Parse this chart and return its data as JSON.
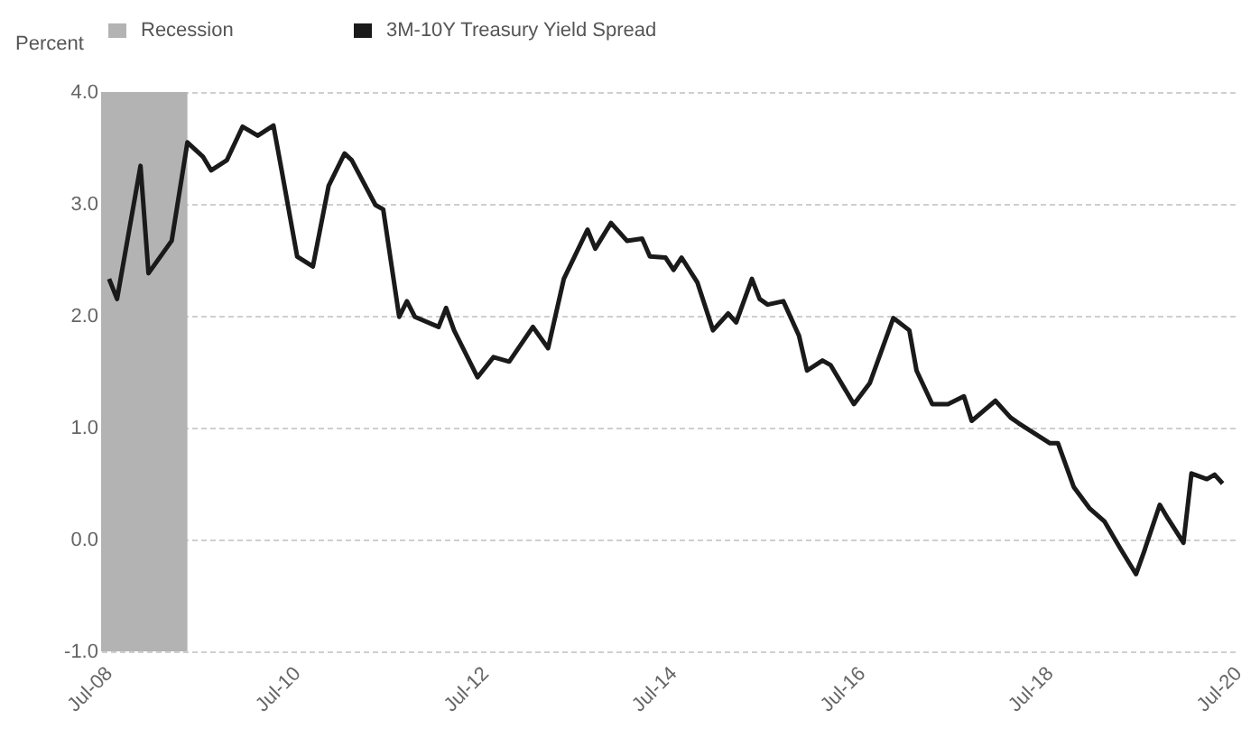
{
  "chart_data": {
    "type": "line",
    "ylabel": "Percent",
    "x": [
      "2008-08",
      "2008-09",
      "2008-12",
      "2009-01",
      "2009-04",
      "2009-06",
      "2009-08",
      "2009-09",
      "2009-11",
      "2010-01",
      "2010-03",
      "2010-05",
      "2010-06",
      "2010-08",
      "2010-10",
      "2010-12",
      "2011-02",
      "2011-03",
      "2011-06",
      "2011-07",
      "2011-09",
      "2011-10",
      "2011-11",
      "2012-02",
      "2012-03",
      "2012-04",
      "2012-07",
      "2012-09",
      "2012-11",
      "2013-02",
      "2013-04",
      "2013-06",
      "2013-09",
      "2013-10",
      "2013-12",
      "2014-02",
      "2014-04",
      "2014-05",
      "2014-07",
      "2014-08",
      "2014-09",
      "2014-11",
      "2015-01",
      "2015-03",
      "2015-04",
      "2015-06",
      "2015-07",
      "2015-08",
      "2015-10",
      "2015-12",
      "2016-01",
      "2016-03",
      "2016-04",
      "2016-07",
      "2016-09",
      "2016-12",
      "2017-02",
      "2017-03",
      "2017-05",
      "2017-07",
      "2017-09",
      "2017-10",
      "2018-01",
      "2018-03",
      "2018-04",
      "2018-08",
      "2018-09",
      "2018-11",
      "2019-01",
      "2019-03",
      "2019-05",
      "2019-07",
      "2019-08",
      "2019-10",
      "2019-11",
      "2020-01",
      "2020-02",
      "2020-04",
      "2020-05",
      "2020-06"
    ],
    "series": [
      {
        "name": "3M-10Y Treasury Yield Spread",
        "color": "#1a1a1a",
        "values": [
          2.33,
          2.15,
          3.34,
          2.38,
          2.67,
          3.55,
          3.42,
          3.3,
          3.39,
          3.69,
          3.61,
          3.7,
          3.31,
          2.53,
          2.44,
          3.16,
          3.45,
          3.39,
          2.99,
          2.95,
          1.99,
          2.13,
          1.99,
          1.9,
          2.07,
          1.87,
          1.45,
          1.63,
          1.59,
          1.9,
          1.71,
          2.33,
          2.77,
          2.6,
          2.83,
          2.67,
          2.69,
          2.53,
          2.52,
          2.41,
          2.52,
          2.3,
          1.87,
          2.02,
          1.94,
          2.33,
          2.15,
          2.1,
          2.13,
          1.82,
          1.51,
          1.6,
          1.56,
          1.21,
          1.4,
          1.98,
          1.87,
          1.51,
          1.21,
          1.21,
          1.28,
          1.06,
          1.24,
          1.09,
          1.04,
          0.86,
          0.86,
          0.47,
          0.28,
          0.16,
          -0.08,
          -0.31,
          -0.11,
          0.31,
          0.19,
          -0.03,
          0.59,
          0.54,
          0.58,
          0.5
        ]
      }
    ],
    "bands": [
      {
        "axis": "x",
        "from": "2008-07",
        "to": "2009-06",
        "label": "Recession",
        "color": "#b3b3b3"
      }
    ],
    "xlim": [
      "2008-07",
      "2020-08"
    ],
    "xticks": [
      {
        "value": "2008-07",
        "label": "Jul-08"
      },
      {
        "value": "2010-07",
        "label": "Jul-10"
      },
      {
        "value": "2012-07",
        "label": "Jul-12"
      },
      {
        "value": "2014-07",
        "label": "Jul-14"
      },
      {
        "value": "2016-07",
        "label": "Jul-16"
      },
      {
        "value": "2018-07",
        "label": "Jul-18"
      },
      {
        "value": "2020-07",
        "label": "Jul-20"
      }
    ],
    "ylim": [
      -1,
      4
    ],
    "yticks": [
      {
        "value": -1,
        "label": "-1.0"
      },
      {
        "value": 0,
        "label": "0.0"
      },
      {
        "value": 1,
        "label": "1.0"
      },
      {
        "value": 2,
        "label": "2.0"
      },
      {
        "value": 3,
        "label": "3.0"
      },
      {
        "value": 4,
        "label": "4.0"
      }
    ],
    "grid": "y",
    "legend": "top",
    "marker": "none",
    "line_style": "solid"
  }
}
